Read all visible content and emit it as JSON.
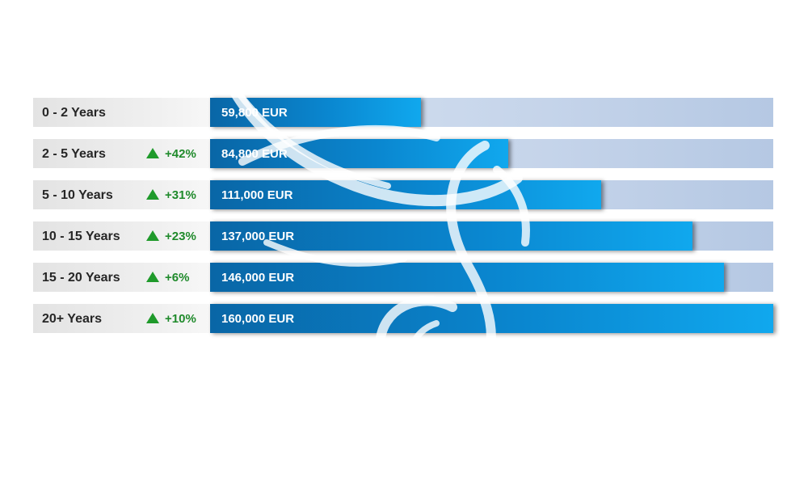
{
  "chart_data": {
    "type": "bar",
    "orientation": "horizontal",
    "categories": [
      "0 - 2 Years",
      "2 - 5 Years",
      "5 - 10 Years",
      "10 - 15 Years",
      "15 - 20 Years",
      "20+ Years"
    ],
    "values": [
      59800,
      84800,
      111000,
      137000,
      146000,
      160000
    ],
    "value_labels": [
      "59,800 EUR",
      "84,800 EUR",
      "111,000 EUR",
      "137,000 EUR",
      "146,000 EUR",
      "160,000 EUR"
    ],
    "changes": [
      "",
      "+42%",
      "+31%",
      "+23%",
      "+6%",
      "+10%"
    ],
    "xlim": [
      0,
      160000
    ],
    "legend": "none",
    "grid": false,
    "colors": {
      "bar": "#0a86cf",
      "track": "#c5d4ea",
      "change": "#1f8a2b"
    }
  },
  "watermark": {
    "icon": "swan-logo-watermark-icon"
  }
}
